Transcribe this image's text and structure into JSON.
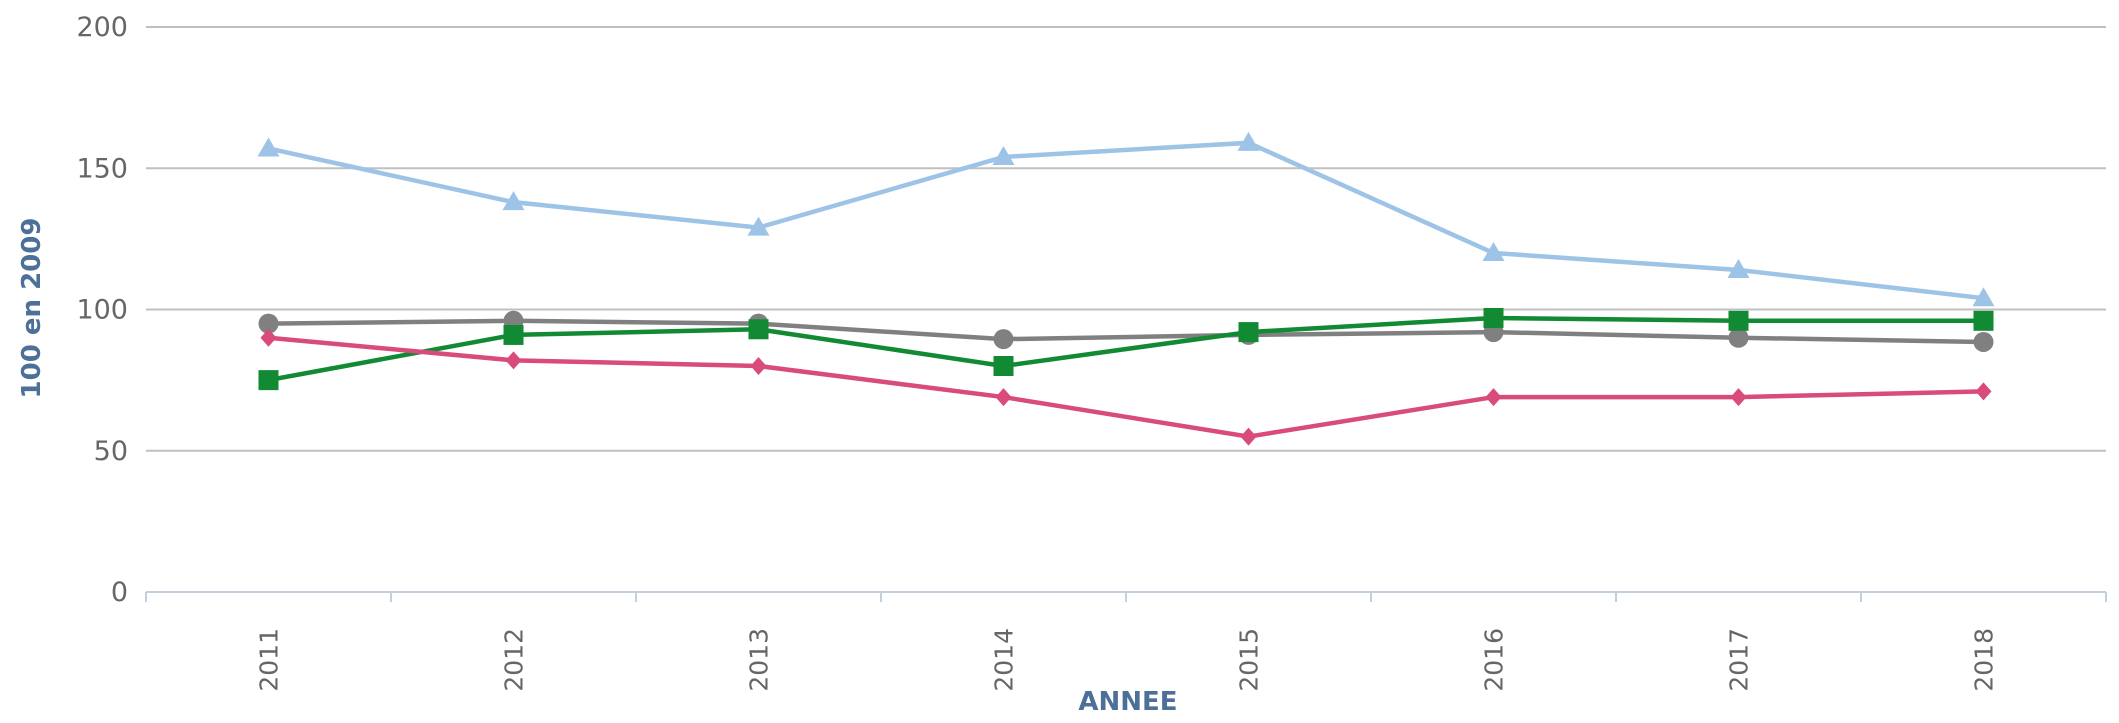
{
  "chart_data": {
    "type": "line",
    "categories": [
      "2011",
      "2012",
      "2013",
      "2014",
      "2015",
      "2016",
      "2017",
      "2018"
    ],
    "series": [
      {
        "color": "#9dc3e6",
        "marker": "triangle",
        "values": [
          157,
          138,
          129,
          154,
          159,
          120,
          114,
          104
        ]
      },
      {
        "color": "#808080",
        "marker": "circle",
        "values": [
          95,
          96,
          95,
          89.5,
          91,
          92,
          90,
          88.5
        ]
      },
      {
        "color": "#128a34",
        "marker": "square",
        "values": [
          75,
          91,
          93,
          80,
          92,
          97,
          96,
          96
        ]
      },
      {
        "color": "#d94b7a",
        "marker": "diamond",
        "values": [
          90,
          82,
          80,
          69,
          55,
          69,
          69,
          71
        ]
      }
    ],
    "ylim": [
      0,
      200
    ],
    "yticks": [
      0,
      50,
      100,
      150,
      200
    ],
    "grid": true,
    "xlabel": "ANNEE",
    "ylabel": "100 en 2009"
  }
}
